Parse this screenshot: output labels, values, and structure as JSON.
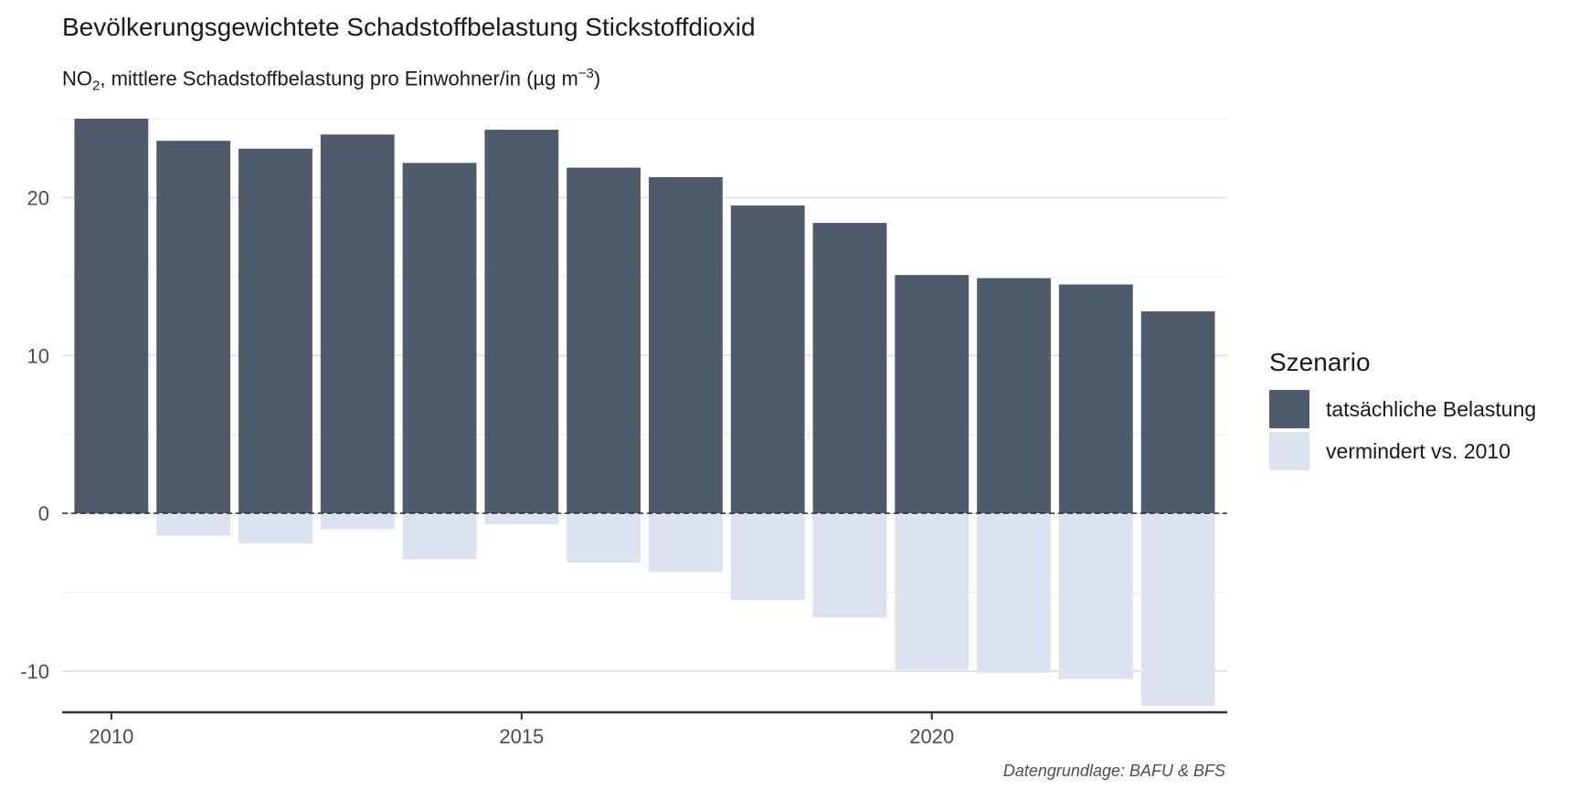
{
  "chart_data": {
    "type": "bar",
    "title": "Bevölkerungsgewichtete Schadstoffbelastung Stickstoffdioxid",
    "subtitle": {
      "prefix": "NO",
      "sub": "2",
      "middle": ", mittlere Schadstoffbelastung pro Einwohner/in (µg m",
      "sup": "−3",
      "suffix": ")"
    },
    "caption": "Datengrundlage: BAFU & BFS",
    "legend_title": "Szenario",
    "x": [
      2010,
      2011,
      2012,
      2013,
      2014,
      2015,
      2016,
      2017,
      2018,
      2019,
      2020,
      2021,
      2022,
      2023
    ],
    "series": [
      {
        "name": "tatsächliche Belastung",
        "color": "#4f5a6b",
        "values": [
          25.0,
          23.6,
          23.1,
          24.0,
          22.2,
          24.3,
          21.9,
          21.3,
          19.5,
          18.4,
          15.1,
          14.9,
          14.5,
          12.8
        ]
      },
      {
        "name": "vermindert vs. 2010",
        "color": "#dde2f0",
        "values": [
          0.0,
          -1.4,
          -1.9,
          -1.0,
          -2.9,
          -0.7,
          -3.1,
          -3.7,
          -5.5,
          -6.6,
          -9.9,
          -10.1,
          -10.5,
          -12.2
        ]
      }
    ],
    "y_ticks": [
      -10,
      0,
      10,
      20
    ],
    "x_ticks": [
      2010,
      2015,
      2020
    ],
    "ylim": [
      -12.6,
      25.0
    ],
    "xlim": [
      2009.4,
      2023.6
    ],
    "reference_line": 0,
    "grid": true,
    "legend_position": "right"
  }
}
